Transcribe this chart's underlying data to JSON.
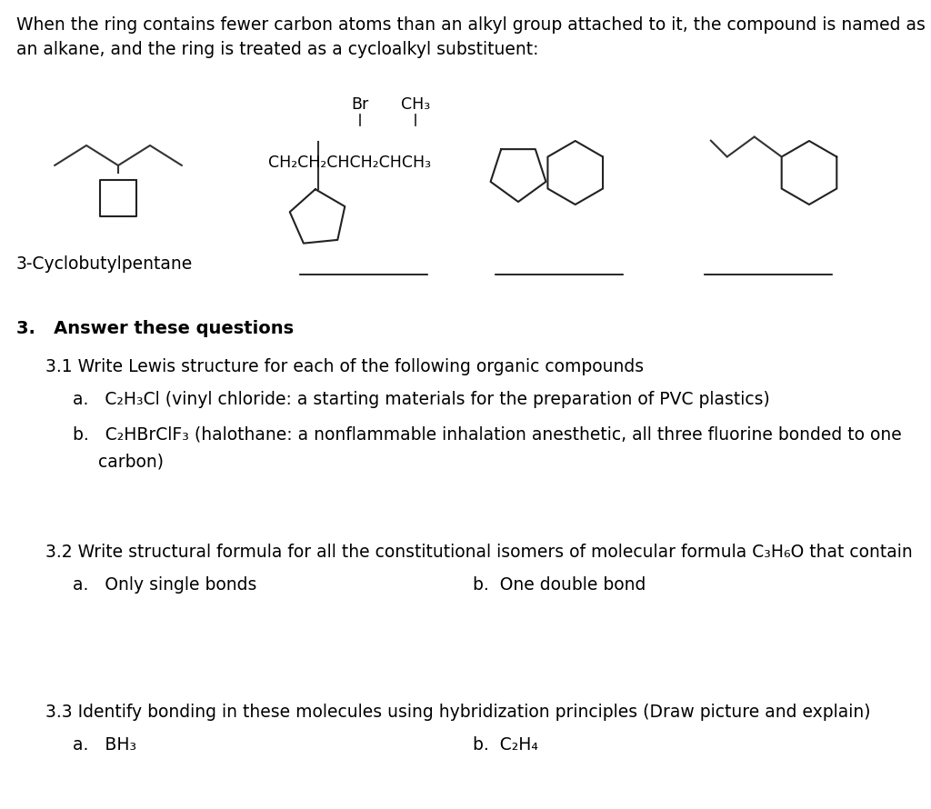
{
  "bg_color": "#ffffff",
  "text_color": "#000000",
  "figsize": [
    10.24,
    8.9
  ],
  "dpi": 100,
  "paragraph1": "When the ring contains fewer carbon atoms than an alkyl group attached to it, the compound is named as\nan alkane, and the ring is treated as a cycloalkyl substituent:",
  "label1": "3-Cyclobutylpentane",
  "section3_header": "3.   Answer these questions",
  "sec31_text": "3.1 Write Lewis structure for each of the following organic compounds",
  "sec32_text": "3.2 Write structural formula for all the constitutional isomers of molecular formula C₃H₆O that contain",
  "sec33_text": "3.3 Identify bonding in these molecules using hybridization principles (Draw picture and explain)"
}
